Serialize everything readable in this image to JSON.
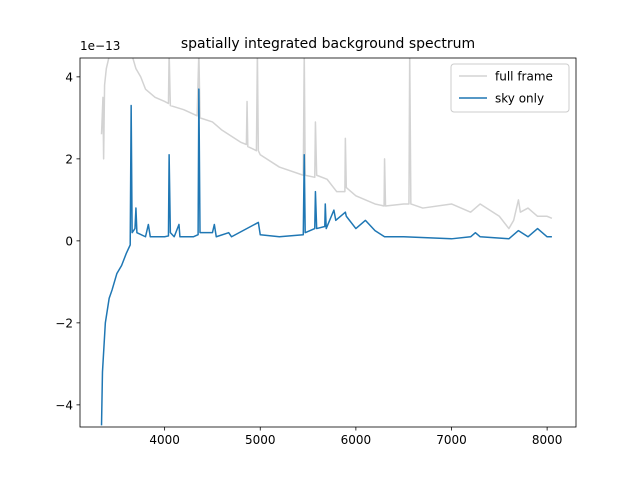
{
  "chart_data": {
    "type": "line",
    "title": "spatially integrated background spectrum",
    "offset_text": "1e−13",
    "xlim": [
      3115,
      8302
    ],
    "ylim": [
      -4.54,
      4.46
    ],
    "xticks": [
      4000,
      5000,
      6000,
      7000,
      8000
    ],
    "yticks": [
      {
        "value": -4,
        "label": "−4"
      },
      {
        "value": -2,
        "label": "−2"
      },
      0,
      2,
      4
    ],
    "legend": "upper right",
    "series": [
      {
        "name": "full frame",
        "color": "#d3d3d3",
        "x": [
          3340,
          3355,
          3362,
          3372,
          3390,
          3420,
          3470,
          3550,
          3650,
          3700,
          3750,
          3800,
          3900,
          4000,
          4040,
          4047,
          4060,
          4200,
          4340,
          4358,
          4370,
          4500,
          4600,
          4800,
          4855,
          4862,
          4870,
          4960,
          4970,
          4980,
          5000,
          5200,
          5450,
          5460,
          5470,
          5570,
          5577,
          5590,
          5700,
          5800,
          5885,
          5890,
          5900,
          6000,
          6200,
          6295,
          6300,
          6310,
          6500,
          6555,
          6563,
          6575,
          6700,
          7000,
          7200,
          7300,
          7500,
          7600,
          7650,
          7700,
          7720,
          7800,
          7900,
          8000,
          8050
        ],
        "values": [
          2.6,
          3.5,
          2.0,
          3.8,
          4.2,
          4.5,
          4.6,
          4.7,
          4.6,
          4.2,
          4.0,
          3.7,
          3.5,
          3.4,
          3.35,
          4.6,
          3.3,
          3.2,
          3.05,
          4.6,
          3.0,
          2.9,
          2.7,
          2.4,
          2.35,
          3.4,
          2.3,
          2.2,
          4.6,
          2.2,
          2.1,
          1.8,
          1.6,
          4.6,
          1.6,
          1.55,
          2.9,
          1.6,
          1.5,
          1.2,
          1.2,
          2.5,
          1.3,
          1.1,
          0.9,
          0.85,
          2.0,
          0.85,
          0.9,
          0.9,
          4.6,
          0.9,
          0.8,
          0.9,
          0.7,
          0.9,
          0.6,
          0.3,
          0.5,
          1.0,
          0.7,
          0.8,
          0.6,
          0.6,
          0.55
        ]
      },
      {
        "name": "sky only",
        "color": "#1f77b4",
        "x": [
          3340,
          3350,
          3380,
          3420,
          3450,
          3500,
          3550,
          3600,
          3640,
          3650,
          3660,
          3690,
          3700,
          3710,
          3800,
          3830,
          3850,
          4000,
          4040,
          4047,
          4060,
          4100,
          4150,
          4160,
          4300,
          4350,
          4358,
          4370,
          4500,
          4520,
          4540,
          4670,
          4700,
          4980,
          5000,
          5200,
          5450,
          5460,
          5470,
          5570,
          5577,
          5590,
          5675,
          5680,
          5690,
          5770,
          5790,
          5890,
          5900,
          6000,
          6100,
          6200,
          6300,
          6500,
          7000,
          7200,
          7250,
          7300,
          7600,
          7700,
          7800,
          7900,
          8000,
          8050
        ],
        "values": [
          -4.5,
          -3.2,
          -2.0,
          -1.4,
          -1.2,
          -0.8,
          -0.6,
          -0.3,
          -0.1,
          3.3,
          0.2,
          0.3,
          0.8,
          0.2,
          0.1,
          0.4,
          0.1,
          0.1,
          0.12,
          2.1,
          0.2,
          0.1,
          0.4,
          0.1,
          0.1,
          0.15,
          3.7,
          0.2,
          0.2,
          0.4,
          0.1,
          0.2,
          0.1,
          0.45,
          0.15,
          0.1,
          0.15,
          2.1,
          0.2,
          0.3,
          1.2,
          0.3,
          0.35,
          0.9,
          0.3,
          0.75,
          0.5,
          0.7,
          0.6,
          0.3,
          0.5,
          0.25,
          0.1,
          0.1,
          0.05,
          0.1,
          0.2,
          0.1,
          0.05,
          0.25,
          0.1,
          0.3,
          0.1,
          0.1
        ]
      }
    ]
  }
}
